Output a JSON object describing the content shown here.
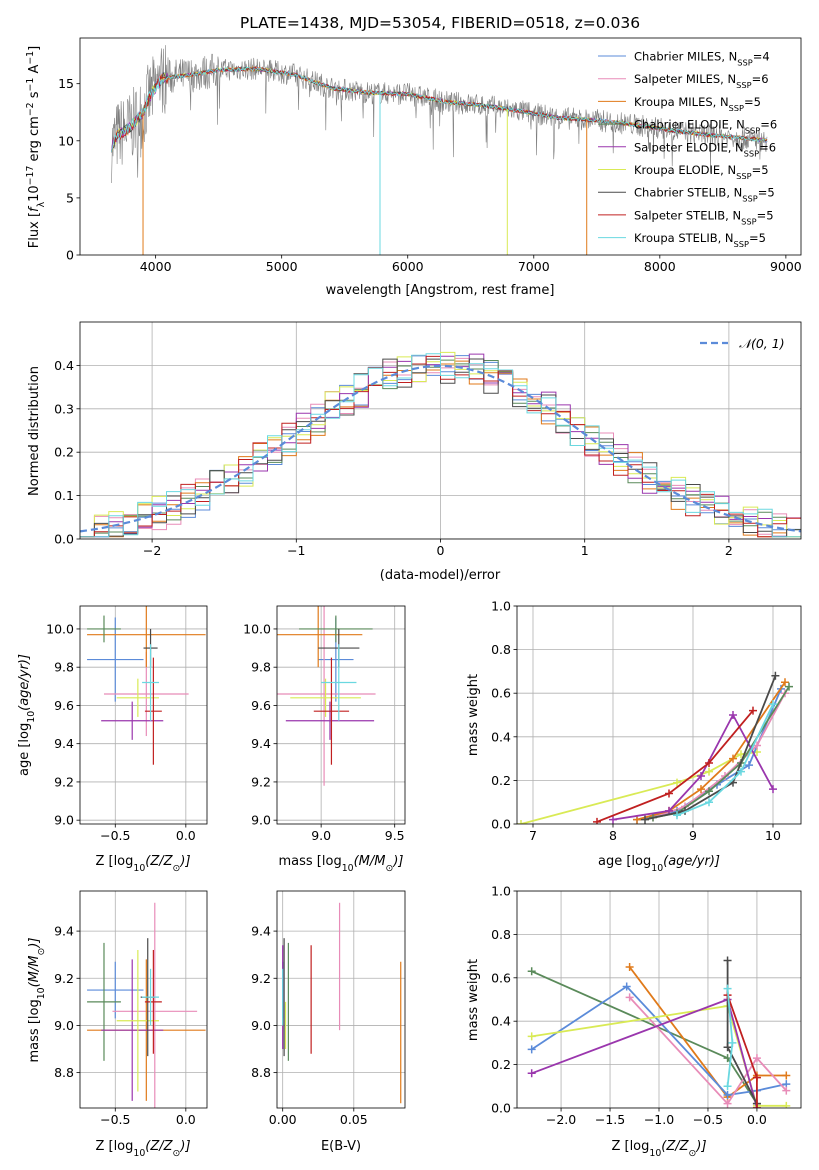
{
  "figure_title": "PLATE=1438, MJD=53054, FIBERID=0518, z=0.036",
  "colors": {
    "Chabrier MILES": "#5b8bd9",
    "Salpeter MILES": "#e88cb8",
    "Kroupa MILES": "#e07a1a",
    "Chabrier ELODIE": "#5a8a5a",
    "Salpeter ELODIE": "#9a36ad",
    "Kroupa ELODIE": "#d9ea55",
    "Chabrier STELIB": "#4a4a4a",
    "Salpeter STELIB": "#c02020",
    "Kroupa STELIB": "#6ad8e0",
    "gaussian": "#5b8bd9",
    "grid": "#b0b0b0",
    "spectrum_data": "#808080"
  },
  "chart_data": [
    {
      "id": "spectrum",
      "type": "line",
      "xlabel": "wavelength [Angstrom, rest frame]",
      "ylabel_parts": [
        "Flux [",
        "f",
        "λ",
        "10",
        "−17",
        " erg cm",
        "−2",
        " s",
        "−1",
        " A",
        "−1",
        "]"
      ],
      "xlim": [
        3400,
        9120
      ],
      "ylim": [
        0,
        19
      ],
      "grid": false,
      "legend_position": "top-right",
      "xticks": [
        4000,
        5000,
        6000,
        7000,
        8000,
        9000
      ],
      "yticks": [
        0,
        5,
        10,
        15
      ],
      "legend": [
        {
          "label": "Chabrier MILES",
          "sub": "4"
        },
        {
          "label": "Salpeter MILES",
          "sub": "6"
        },
        {
          "label": "Kroupa MILES",
          "sub": "5"
        },
        {
          "label": "Chabrier ELODIE",
          "sub": "6"
        },
        {
          "label": "Salpeter ELODIE",
          "sub": "6"
        },
        {
          "label": "Kroupa ELODIE",
          "sub": "5"
        },
        {
          "label": "Chabrier STELIB",
          "sub": "5"
        },
        {
          "label": "Salpeter STELIB",
          "sub": "5"
        },
        {
          "label": "Kroupa STELIB",
          "sub": "5"
        }
      ],
      "continuum": [
        [
          3650,
          9.5
        ],
        [
          3700,
          10.5
        ],
        [
          3800,
          11.2
        ],
        [
          3900,
          12.5
        ],
        [
          3950,
          13.8
        ],
        [
          4050,
          15.5
        ],
        [
          4150,
          15.6
        ],
        [
          4300,
          15.8
        ],
        [
          4500,
          16.2
        ],
        [
          4800,
          16.3
        ],
        [
          5100,
          15.8
        ],
        [
          5400,
          14.6
        ],
        [
          5700,
          14.2
        ],
        [
          6000,
          14.1
        ],
        [
          6300,
          13.4
        ],
        [
          6600,
          13.1
        ],
        [
          6900,
          12.6
        ],
        [
          7200,
          12.0
        ],
        [
          7500,
          11.8
        ],
        [
          7800,
          11.4
        ],
        [
          8100,
          10.9
        ],
        [
          8400,
          10.5
        ],
        [
          8700,
          10.2
        ],
        [
          8850,
          10.0
        ]
      ]
    },
    {
      "id": "histogram",
      "type": "bar",
      "xlabel": "(data-model)/error",
      "ylabel": "Normed distribution",
      "xlim": [
        -2.5,
        2.5
      ],
      "ylim": [
        0,
        0.5
      ],
      "grid": true,
      "legend_position": "top-right",
      "xticks": [
        -2,
        -1,
        0,
        1,
        2
      ],
      "yticks": [
        0.0,
        0.1,
        0.2,
        0.3,
        0.4
      ],
      "legend_label": "𝒩(0, 1)",
      "bin_width": 0.1
    },
    {
      "id": "age_vs_Z",
      "type": "scatter",
      "xlabel_parts": [
        "Z [log",
        "10",
        "(Z/Z",
        "⊙",
        ")]"
      ],
      "ylabel_parts": [
        "age  [log",
        "10",
        "(age/yr)]"
      ],
      "xlim": [
        -0.75,
        0.15
      ],
      "ylim": [
        8.98,
        10.12
      ],
      "grid": true,
      "xticks": [
        -0.5,
        0.0
      ],
      "yticks": [
        9.0,
        9.2,
        9.4,
        9.6,
        9.8,
        10.0
      ],
      "points": [
        {
          "s": "Chabrier MILES",
          "x": -0.5,
          "y": 9.84,
          "xerr": 0.2,
          "yerr": 0.22
        },
        {
          "s": "Salpeter MILES",
          "x": -0.28,
          "y": 9.66,
          "xerr": 0.3,
          "yerr": 0.22
        },
        {
          "s": "Kroupa MILES",
          "x": -0.28,
          "y": 9.97,
          "xerr": 0.42,
          "yerr": 0.17
        },
        {
          "s": "Chabrier ELODIE",
          "x": -0.58,
          "y": 10.0,
          "xerr": 0.12,
          "yerr": 0.07
        },
        {
          "s": "Salpeter ELODIE",
          "x": -0.38,
          "y": 9.52,
          "xerr": 0.22,
          "yerr": 0.1
        },
        {
          "s": "Kroupa ELODIE",
          "x": -0.34,
          "y": 9.64,
          "xerr": 0.15,
          "yerr": 0.1
        },
        {
          "s": "Chabrier STELIB",
          "x": -0.25,
          "y": 9.9,
          "xerr": 0.05,
          "yerr": 0.1
        },
        {
          "s": "Salpeter STELIB",
          "x": -0.23,
          "y": 9.57,
          "xerr": 0.06,
          "yerr": 0.28
        },
        {
          "s": "Kroupa STELIB",
          "x": -0.25,
          "y": 9.72,
          "xerr": 0.06,
          "yerr": 0.2
        }
      ]
    },
    {
      "id": "age_vs_mass",
      "type": "scatter",
      "xlabel_parts": [
        "mass [log",
        "10",
        "(M/M",
        "⊙",
        ")]"
      ],
      "xlim": [
        8.7,
        9.57
      ],
      "ylim": [
        8.98,
        10.12
      ],
      "grid": true,
      "xticks": [
        9.0,
        9.5
      ],
      "yticks": [
        9.0,
        9.2,
        9.4,
        9.6,
        9.8,
        10.0
      ],
      "points": [
        {
          "s": "Chabrier MILES",
          "x": 9.1,
          "y": 9.84,
          "xerr": 0.12,
          "yerr": 0.22
        },
        {
          "s": "Salpeter MILES",
          "x": 9.02,
          "y": 9.66,
          "xerr": 0.35,
          "yerr": 0.48
        },
        {
          "s": "Kroupa MILES",
          "x": 8.98,
          "y": 9.97,
          "xerr": 0.3,
          "yerr": 0.17
        },
        {
          "s": "Chabrier ELODIE",
          "x": 9.1,
          "y": 10.0,
          "xerr": 0.25,
          "yerr": 0.07
        },
        {
          "s": "Salpeter ELODIE",
          "x": 9.06,
          "y": 9.52,
          "xerr": 0.3,
          "yerr": 0.1
        },
        {
          "s": "Kroupa ELODIE",
          "x": 9.03,
          "y": 9.64,
          "xerr": 0.24,
          "yerr": 0.1
        },
        {
          "s": "Chabrier STELIB",
          "x": 9.12,
          "y": 9.9,
          "xerr": 0.14,
          "yerr": 0.1
        },
        {
          "s": "Salpeter STELIB",
          "x": 9.07,
          "y": 9.57,
          "xerr": 0.12,
          "yerr": 0.28
        },
        {
          "s": "Kroupa STELIB",
          "x": 9.12,
          "y": 9.72,
          "xerr": 0.12,
          "yerr": 0.2
        }
      ]
    },
    {
      "id": "weight_vs_age",
      "type": "line",
      "xlabel_parts": [
        "age  [log",
        "10",
        "(age/yr)]"
      ],
      "ylabel": "mass weight",
      "xlim": [
        6.8,
        10.35
      ],
      "ylim": [
        0,
        1
      ],
      "grid": true,
      "xticks": [
        7,
        8,
        9,
        10
      ],
      "yticks": [
        0.0,
        0.2,
        0.4,
        0.6,
        0.8,
        1.0
      ],
      "series": [
        {
          "s": "Kroupa ELODIE",
          "x": [
            6.85,
            8.8,
            9.2,
            9.6,
            9.8
          ],
          "y": [
            0.0,
            0.19,
            0.24,
            0.32,
            0.33
          ]
        },
        {
          "s": "Chabrier MILES",
          "x": [
            8.3,
            8.8,
            9.3,
            9.7,
            10.1
          ],
          "y": [
            0.02,
            0.06,
            0.18,
            0.27,
            0.62
          ]
        },
        {
          "s": "Salpeter MILES",
          "x": [
            8.5,
            8.9,
            9.4,
            9.8,
            10.15
          ],
          "y": [
            0.03,
            0.08,
            0.22,
            0.36,
            0.6
          ]
        },
        {
          "s": "Kroupa MILES",
          "x": [
            8.3,
            8.7,
            9.1,
            9.5,
            10.15
          ],
          "y": [
            0.02,
            0.06,
            0.16,
            0.3,
            0.65
          ]
        },
        {
          "s": "Chabrier ELODIE",
          "x": [
            8.5,
            8.8,
            9.2,
            9.6,
            10.2
          ],
          "y": [
            0.03,
            0.05,
            0.15,
            0.28,
            0.63
          ]
        },
        {
          "s": "Salpeter ELODIE",
          "x": [
            8.0,
            8.7,
            9.1,
            9.5,
            10.0
          ],
          "y": [
            0.02,
            0.06,
            0.22,
            0.5,
            0.16
          ]
        },
        {
          "s": "Chabrier STELIB",
          "x": [
            8.4,
            8.9,
            9.5,
            10.03
          ],
          "y": [
            0.02,
            0.06,
            0.19,
            0.68
          ]
        },
        {
          "s": "Salpeter STELIB",
          "x": [
            7.8,
            8.7,
            9.2,
            9.75
          ],
          "y": [
            0.01,
            0.14,
            0.28,
            0.52
          ]
        },
        {
          "s": "Kroupa STELIB",
          "x": [
            8.8,
            9.2,
            9.6,
            10.0
          ],
          "y": [
            0.04,
            0.1,
            0.24,
            0.55
          ]
        }
      ]
    },
    {
      "id": "mass_vs_Z",
      "type": "scatter",
      "xlabel_parts": [
        "Z [log",
        "10",
        "(Z/Z",
        "⊙",
        ")]"
      ],
      "ylabel_parts": [
        "mass [log",
        "10",
        "(M/M",
        "⊙",
        ")]"
      ],
      "xlim": [
        -0.75,
        0.15
      ],
      "ylim": [
        8.65,
        9.57
      ],
      "grid": true,
      "xticks": [
        -0.5,
        0.0
      ],
      "yticks": [
        8.8,
        9.0,
        9.2,
        9.4
      ],
      "points": [
        {
          "s": "Chabrier MILES",
          "x": -0.5,
          "y": 9.15,
          "xerr": 0.2,
          "yerr": 0.12
        },
        {
          "s": "Salpeter MILES",
          "x": -0.22,
          "y": 9.06,
          "xerr": 0.3,
          "yerr": 0.46
        },
        {
          "s": "Kroupa MILES",
          "x": -0.28,
          "y": 8.98,
          "xerr": 0.42,
          "yerr": 0.3
        },
        {
          "s": "Chabrier ELODIE",
          "x": -0.58,
          "y": 9.1,
          "xerr": 0.12,
          "yerr": 0.25
        },
        {
          "s": "Salpeter ELODIE",
          "x": -0.38,
          "y": 8.98,
          "xerr": 0.22,
          "yerr": 0.3
        },
        {
          "s": "Kroupa ELODIE",
          "x": -0.34,
          "y": 9.02,
          "xerr": 0.15,
          "yerr": 0.3
        },
        {
          "s": "Chabrier STELIB",
          "x": -0.27,
          "y": 9.12,
          "xerr": 0.05,
          "yerr": 0.25
        },
        {
          "s": "Salpeter STELIB",
          "x": -0.23,
          "y": 9.1,
          "xerr": 0.06,
          "yerr": 0.22
        },
        {
          "s": "Kroupa STELIB",
          "x": -0.25,
          "y": 9.12,
          "xerr": 0.06,
          "yerr": 0.12
        }
      ]
    },
    {
      "id": "mass_vs_EBV",
      "type": "scatter",
      "xlabel": "E(B-V)",
      "xlim": [
        -0.004,
        0.086
      ],
      "ylim": [
        8.65,
        9.57
      ],
      "grid": true,
      "xticks": [
        0.0,
        0.05
      ],
      "yticks": [
        8.8,
        9.0,
        9.2,
        9.4
      ],
      "points": [
        {
          "s": "Chabrier MILES",
          "x": 0.0,
          "y": 9.15,
          "yerr": 0.12
        },
        {
          "s": "Salpeter MILES",
          "x": 0.04,
          "y": 9.25,
          "yerr": 0.27
        },
        {
          "s": "Kroupa MILES",
          "x": 0.083,
          "y": 8.97,
          "yerr": 0.3
        },
        {
          "s": "Chabrier ELODIE",
          "x": 0.004,
          "y": 9.1,
          "yerr": 0.25
        },
        {
          "s": "Salpeter ELODIE",
          "x": 0.0,
          "y": 9.12,
          "yerr": 0.22
        },
        {
          "s": "Kroupa ELODIE",
          "x": 0.002,
          "y": 9.0,
          "yerr": 0.1
        },
        {
          "s": "Chabrier STELIB",
          "x": 0.001,
          "y": 9.12,
          "yerr": 0.25
        },
        {
          "s": "Salpeter STELIB",
          "x": 0.02,
          "y": 9.11,
          "yerr": 0.23
        },
        {
          "s": "Kroupa STELIB",
          "x": 0.0,
          "y": 9.12,
          "yerr": 0.12
        }
      ]
    },
    {
      "id": "weight_vs_Z",
      "type": "line",
      "xlabel_parts": [
        "Z [log",
        "10",
        "(Z/Z",
        "⊙",
        ")]"
      ],
      "ylabel": "mass weight",
      "xlim": [
        -2.45,
        0.45
      ],
      "ylim": [
        0,
        1
      ],
      "grid": true,
      "xticks": [
        -2.0,
        -1.5,
        -1.0,
        -0.5,
        0.0
      ],
      "yticks": [
        0.0,
        0.2,
        0.4,
        0.6,
        0.8,
        1.0
      ],
      "series": [
        {
          "s": "Chabrier ELODIE",
          "x": [
            -2.3,
            -0.3,
            0.0
          ],
          "y": [
            0.63,
            0.23,
            0.02
          ]
        },
        {
          "s": "Kroupa MILES",
          "x": [
            -1.3,
            -0.3,
            0.0,
            0.3
          ],
          "y": [
            0.65,
            0.05,
            0.15,
            0.15
          ]
        },
        {
          "s": "Chabrier MILES",
          "x": [
            -2.3,
            -1.33,
            -0.3,
            0.0,
            0.3
          ],
          "y": [
            0.27,
            0.56,
            0.06,
            0.08,
            0.11
          ]
        },
        {
          "s": "Salpeter MILES",
          "x": [
            -1.3,
            -0.3,
            0.0,
            0.3
          ],
          "y": [
            0.51,
            0.02,
            0.23,
            0.08
          ]
        },
        {
          "s": "Kroupa ELODIE",
          "x": [
            -2.3,
            -0.3,
            0.0,
            0.3
          ],
          "y": [
            0.33,
            0.47,
            0.01,
            0.01
          ]
        },
        {
          "s": "Salpeter ELODIE",
          "x": [
            -2.3,
            -0.3,
            0.0
          ],
          "y": [
            0.16,
            0.5,
            0.0
          ]
        },
        {
          "s": "Chabrier STELIB",
          "x": [
            -0.3,
            -0.3,
            0.0
          ],
          "y": [
            0.68,
            0.28,
            0.02
          ]
        },
        {
          "s": "Salpeter STELIB",
          "x": [
            -0.3,
            0.0,
            0.0
          ],
          "y": [
            0.52,
            0.14,
            0.0
          ]
        },
        {
          "s": "Kroupa STELIB",
          "x": [
            -0.3,
            -0.25,
            -0.3
          ],
          "y": [
            0.55,
            0.3,
            0.1
          ]
        }
      ]
    }
  ]
}
